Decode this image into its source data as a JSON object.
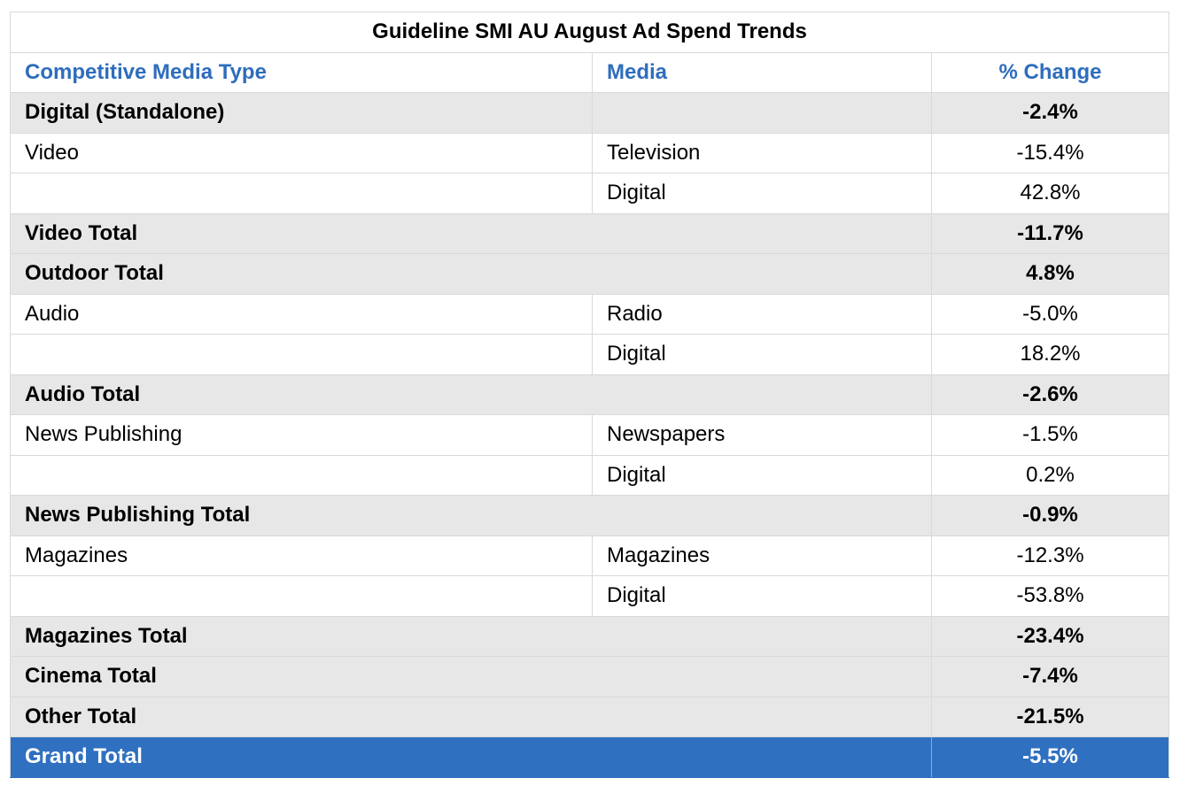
{
  "chart_data": {
    "type": "table",
    "title": "Guideline SMI AU August Ad Spend Trends",
    "columns": [
      "Competitive Media Type",
      "Media",
      "% Change"
    ],
    "rows": [
      {
        "kind": "total",
        "type": "Digital (Standalone)",
        "media": "",
        "change": "-2.4%"
      },
      {
        "kind": "detail",
        "type": "Video",
        "media": "Television",
        "change": "-15.4%"
      },
      {
        "kind": "detail",
        "type": "",
        "media": "Digital",
        "change": "42.8%"
      },
      {
        "kind": "total",
        "type": "Video Total",
        "media": "",
        "change": "-11.7%"
      },
      {
        "kind": "total",
        "type": "Outdoor Total",
        "media": "",
        "change": "4.8%"
      },
      {
        "kind": "detail",
        "type": "Audio",
        "media": "Radio",
        "change": "-5.0%"
      },
      {
        "kind": "detail",
        "type": "",
        "media": "Digital",
        "change": "18.2%"
      },
      {
        "kind": "total",
        "type": "Audio Total",
        "media": "",
        "change": "-2.6%"
      },
      {
        "kind": "detail",
        "type": "News Publishing",
        "media": "Newspapers",
        "change": "-1.5%"
      },
      {
        "kind": "detail",
        "type": "",
        "media": "Digital",
        "change": "0.2%"
      },
      {
        "kind": "total",
        "type": "News Publishing Total",
        "media": "",
        "change": "-0.9%"
      },
      {
        "kind": "detail",
        "type": "Magazines",
        "media": "Magazines",
        "change": "-12.3%"
      },
      {
        "kind": "detail",
        "type": "",
        "media": "Digital",
        "change": "-53.8%"
      },
      {
        "kind": "total",
        "type": "Magazines Total",
        "media": "",
        "change": "-23.4%"
      },
      {
        "kind": "total",
        "type": "Cinema Total",
        "media": "",
        "change": "-7.4%"
      },
      {
        "kind": "total",
        "type": "Other Total",
        "media": "",
        "change": "-21.5%"
      },
      {
        "kind": "grand",
        "type": "Grand Total",
        "media": "",
        "change": "-5.5%"
      }
    ]
  },
  "colors": {
    "header_text": "#2e6dbd",
    "total_row_bg": "#e7e7e7",
    "grand_total_bg": "#3070c0",
    "grand_total_text": "#ffffff",
    "grid_line": "#d9d9d9"
  }
}
